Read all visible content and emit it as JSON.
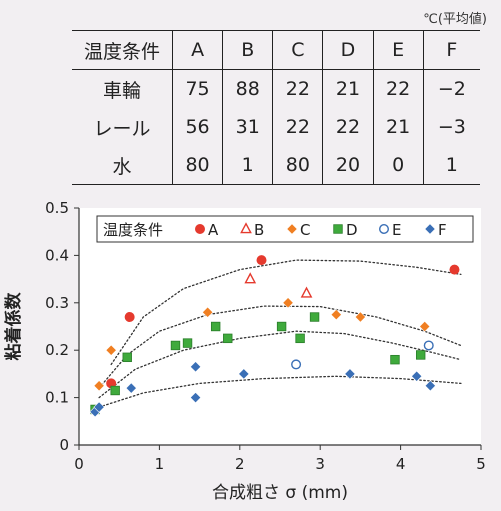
{
  "table": {
    "unit_note": "℃(平均値)",
    "header": [
      "温度条件",
      "A",
      "B",
      "C",
      "D",
      "E",
      "F"
    ],
    "rows": [
      {
        "label": "車輪",
        "values": [
          "75",
          "88",
          "22",
          "21",
          "22",
          "−2"
        ]
      },
      {
        "label": "レール",
        "values": [
          "56",
          "31",
          "22",
          "22",
          "21",
          "−3"
        ]
      },
      {
        "label": "水",
        "values": [
          "80",
          "1",
          "80",
          "20",
          "0",
          "1"
        ]
      }
    ]
  },
  "chart_data": {
    "type": "scatter",
    "xlabel": "合成粗さ σ (mm)",
    "ylabel": "粘着係数",
    "xlim": [
      0,
      5
    ],
    "ylim": [
      0,
      0.5
    ],
    "xticks": [
      "0",
      "1",
      "2",
      "3",
      "4",
      "5"
    ],
    "yticks": [
      "0",
      "0.1",
      "0.2",
      "0.3",
      "0.4",
      "0.5"
    ],
    "grid": false,
    "legend": {
      "title": "温度条件",
      "placement": "top"
    },
    "series": [
      {
        "name": "A",
        "marker": "circle",
        "color": "#e53a2e",
        "filled": true,
        "points": [
          [
            0.4,
            0.13
          ],
          [
            0.63,
            0.27
          ],
          [
            2.27,
            0.39
          ],
          [
            4.67,
            0.37
          ]
        ]
      },
      {
        "name": "B",
        "marker": "triangle",
        "color": "#e53a2e",
        "filled": false,
        "points": [
          [
            2.13,
            0.35
          ],
          [
            2.83,
            0.32
          ]
        ]
      },
      {
        "name": "C",
        "marker": "diamond",
        "color": "#f07f22",
        "filled": true,
        "points": [
          [
            0.25,
            0.125
          ],
          [
            0.4,
            0.2
          ],
          [
            1.6,
            0.28
          ],
          [
            2.6,
            0.3
          ],
          [
            3.2,
            0.275
          ],
          [
            3.5,
            0.27
          ],
          [
            4.3,
            0.25
          ]
        ]
      },
      {
        "name": "D",
        "marker": "square",
        "color": "#3faa3c",
        "filled": true,
        "points": [
          [
            0.2,
            0.075
          ],
          [
            0.45,
            0.115
          ],
          [
            0.6,
            0.185
          ],
          [
            1.2,
            0.21
          ],
          [
            1.35,
            0.215
          ],
          [
            1.7,
            0.25
          ],
          [
            1.85,
            0.225
          ],
          [
            2.52,
            0.25
          ],
          [
            2.75,
            0.225
          ],
          [
            2.93,
            0.27
          ],
          [
            3.93,
            0.18
          ],
          [
            4.25,
            0.19
          ]
        ]
      },
      {
        "name": "E",
        "marker": "circle",
        "color": "#3a6fb6",
        "filled": false,
        "points": [
          [
            2.7,
            0.17
          ],
          [
            4.35,
            0.21
          ]
        ]
      },
      {
        "name": "F",
        "marker": "diamond",
        "color": "#3a6fb6",
        "filled": true,
        "points": [
          [
            0.2,
            0.07
          ],
          [
            0.25,
            0.08
          ],
          [
            0.65,
            0.12
          ],
          [
            1.45,
            0.165
          ],
          [
            1.45,
            0.1
          ],
          [
            2.05,
            0.15
          ],
          [
            3.37,
            0.15
          ],
          [
            4.2,
            0.145
          ],
          [
            4.37,
            0.125
          ]
        ]
      }
    ],
    "trend_curves": [
      [
        [
          0.4,
          0.17
        ],
        [
          0.8,
          0.27
        ],
        [
          1.3,
          0.33
        ],
        [
          2.0,
          0.37
        ],
        [
          2.7,
          0.39
        ],
        [
          3.5,
          0.388
        ],
        [
          4.2,
          0.375
        ],
        [
          4.75,
          0.36
        ]
      ],
      [
        [
          0.25,
          0.12
        ],
        [
          0.6,
          0.19
        ],
        [
          1.0,
          0.24
        ],
        [
          1.6,
          0.275
        ],
        [
          2.3,
          0.293
        ],
        [
          3.0,
          0.292
        ],
        [
          3.7,
          0.27
        ],
        [
          4.3,
          0.24
        ],
        [
          4.75,
          0.21
        ]
      ],
      [
        [
          0.25,
          0.1
        ],
        [
          0.7,
          0.16
        ],
        [
          1.3,
          0.2
        ],
        [
          2.0,
          0.225
        ],
        [
          2.7,
          0.24
        ],
        [
          3.3,
          0.235
        ],
        [
          3.9,
          0.215
        ],
        [
          4.4,
          0.195
        ],
        [
          4.75,
          0.18
        ]
      ],
      [
        [
          0.25,
          0.08
        ],
        [
          0.8,
          0.11
        ],
        [
          1.5,
          0.13
        ],
        [
          2.3,
          0.14
        ],
        [
          3.2,
          0.145
        ],
        [
          4.0,
          0.14
        ],
        [
          4.75,
          0.13
        ]
      ]
    ]
  }
}
